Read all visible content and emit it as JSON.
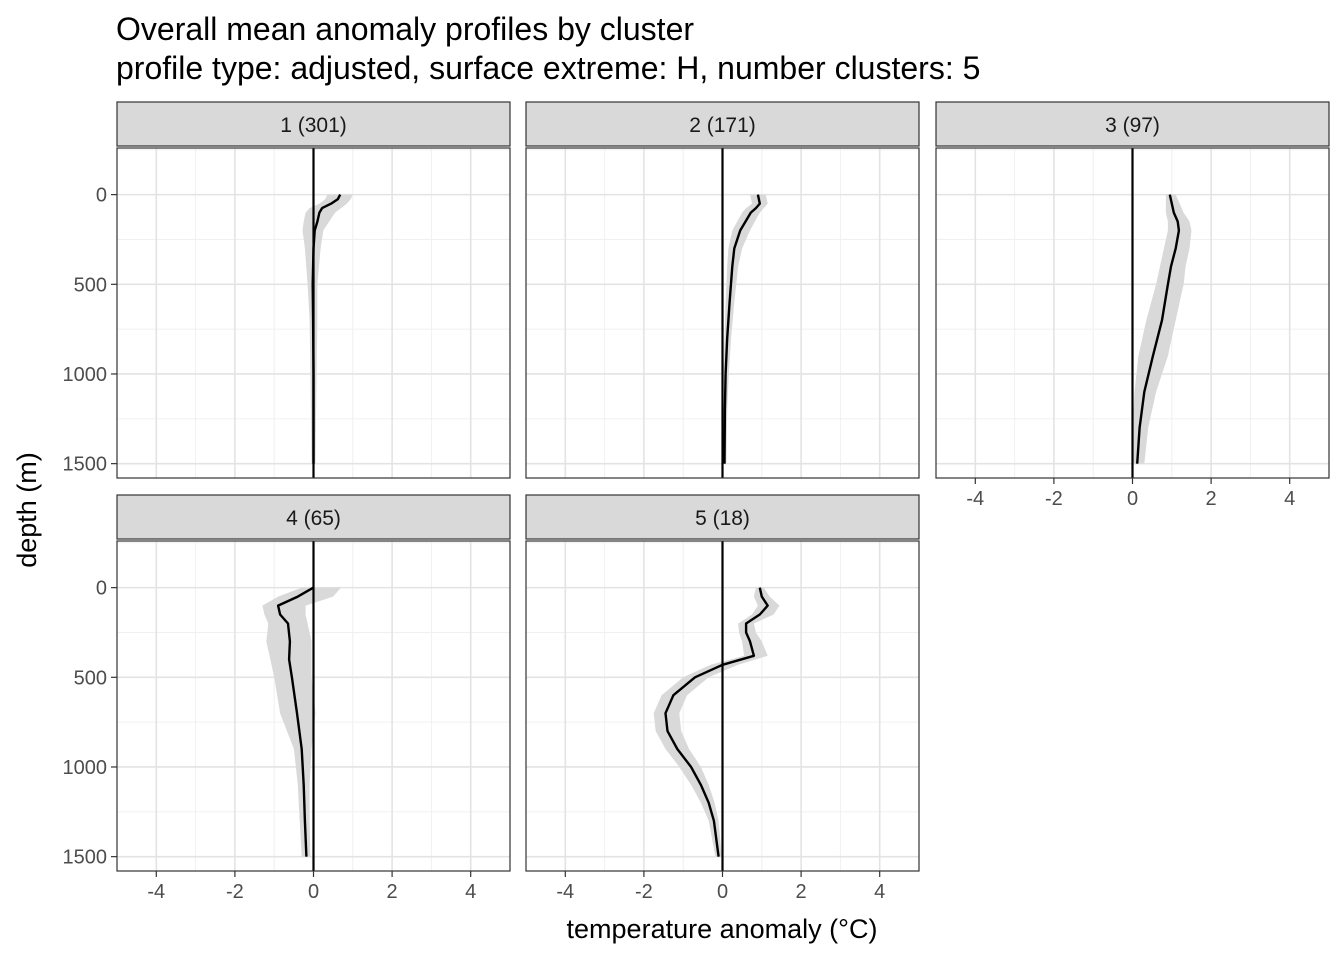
{
  "chart_data": {
    "type": "line",
    "title": "Overall mean anomaly profiles by cluster",
    "subtitle": "profile type: adjusted, surface extreme: H, number clusters: 5",
    "xlabel": "temperature anomaly (°C)",
    "ylabel": "depth (m)",
    "xlim": [
      -5,
      5
    ],
    "ylim": [
      1580,
      -260
    ],
    "y_reversed": true,
    "x_ticks": [
      -4,
      -2,
      0,
      2,
      4
    ],
    "x_tick_labels": [
      "-4",
      "-2",
      "0",
      "2",
      "4"
    ],
    "y_ticks": [
      0,
      500,
      1000,
      1500
    ],
    "y_tick_labels": [
      "0",
      "500",
      "1000",
      "1500"
    ],
    "grid": true,
    "zero_line_x": 0,
    "line_color": "#000000",
    "ribbon_color": "#d9d9d9",
    "strip_color": "#d9d9d9",
    "panels": [
      {
        "label": "1 (301)",
        "profile": [
          {
            "depth": 0,
            "mean": 0.68,
            "lo": 0.35,
            "hi": 1.0
          },
          {
            "depth": 25,
            "mean": 0.62,
            "lo": 0.3,
            "hi": 0.95
          },
          {
            "depth": 50,
            "mean": 0.45,
            "lo": 0.15,
            "hi": 0.85
          },
          {
            "depth": 75,
            "mean": 0.22,
            "lo": -0.1,
            "hi": 0.7
          },
          {
            "depth": 100,
            "mean": 0.15,
            "lo": -0.2,
            "hi": 0.55
          },
          {
            "depth": 150,
            "mean": 0.1,
            "lo": -0.25,
            "hi": 0.4
          },
          {
            "depth": 200,
            "mean": 0.03,
            "lo": -0.28,
            "hi": 0.25
          },
          {
            "depth": 300,
            "mean": 0.0,
            "lo": -0.22,
            "hi": 0.18
          },
          {
            "depth": 500,
            "mean": -0.02,
            "lo": -0.15,
            "hi": 0.1
          },
          {
            "depth": 700,
            "mean": -0.01,
            "lo": -0.1,
            "hi": 0.1
          },
          {
            "depth": 1000,
            "mean": 0.0,
            "lo": -0.08,
            "hi": 0.08
          },
          {
            "depth": 1300,
            "mean": 0.0,
            "lo": -0.06,
            "hi": 0.06
          },
          {
            "depth": 1500,
            "mean": 0.0,
            "lo": -0.05,
            "hi": 0.05
          }
        ]
      },
      {
        "label": "2 (171)",
        "profile": [
          {
            "depth": 0,
            "mean": 0.9,
            "lo": 0.7,
            "hi": 1.1
          },
          {
            "depth": 50,
            "mean": 0.95,
            "lo": 0.75,
            "hi": 1.15
          },
          {
            "depth": 75,
            "mean": 0.85,
            "lo": 0.6,
            "hi": 1.05
          },
          {
            "depth": 100,
            "mean": 0.72,
            "lo": 0.5,
            "hi": 0.95
          },
          {
            "depth": 200,
            "mean": 0.45,
            "lo": 0.25,
            "hi": 0.7
          },
          {
            "depth": 300,
            "mean": 0.3,
            "lo": 0.15,
            "hi": 0.5
          },
          {
            "depth": 400,
            "mean": 0.25,
            "lo": 0.12,
            "hi": 0.4
          },
          {
            "depth": 600,
            "mean": 0.18,
            "lo": 0.08,
            "hi": 0.3
          },
          {
            "depth": 800,
            "mean": 0.12,
            "lo": 0.05,
            "hi": 0.22
          },
          {
            "depth": 1000,
            "mean": 0.08,
            "lo": 0.02,
            "hi": 0.16
          },
          {
            "depth": 1200,
            "mean": 0.06,
            "lo": 0.0,
            "hi": 0.12
          },
          {
            "depth": 1500,
            "mean": 0.05,
            "lo": 0.0,
            "hi": 0.1
          }
        ]
      },
      {
        "label": "3 (97)",
        "profile": [
          {
            "depth": 0,
            "mean": 0.95,
            "lo": 0.85,
            "hi": 1.1
          },
          {
            "depth": 100,
            "mean": 1.05,
            "lo": 0.85,
            "hi": 1.3
          },
          {
            "depth": 150,
            "mean": 1.15,
            "lo": 0.9,
            "hi": 1.45
          },
          {
            "depth": 200,
            "mean": 1.18,
            "lo": 0.9,
            "hi": 1.5
          },
          {
            "depth": 300,
            "mean": 1.1,
            "lo": 0.8,
            "hi": 1.45
          },
          {
            "depth": 400,
            "mean": 0.98,
            "lo": 0.7,
            "hi": 1.35
          },
          {
            "depth": 500,
            "mean": 0.9,
            "lo": 0.6,
            "hi": 1.3
          },
          {
            "depth": 700,
            "mean": 0.75,
            "lo": 0.35,
            "hi": 1.1
          },
          {
            "depth": 900,
            "mean": 0.52,
            "lo": 0.15,
            "hi": 0.9
          },
          {
            "depth": 1100,
            "mean": 0.3,
            "lo": 0.05,
            "hi": 0.6
          },
          {
            "depth": 1300,
            "mean": 0.18,
            "lo": 0.0,
            "hi": 0.4
          },
          {
            "depth": 1500,
            "mean": 0.12,
            "lo": 0.0,
            "hi": 0.3
          }
        ]
      },
      {
        "label": "4 (65)",
        "profile": [
          {
            "depth": 0,
            "mean": 0.0,
            "lo": -0.3,
            "hi": 0.7
          },
          {
            "depth": 50,
            "mean": -0.4,
            "lo": -0.9,
            "hi": 0.5
          },
          {
            "depth": 100,
            "mean": -0.9,
            "lo": -1.3,
            "hi": -0.2
          },
          {
            "depth": 150,
            "mean": -0.85,
            "lo": -1.25,
            "hi": -0.2
          },
          {
            "depth": 200,
            "mean": -0.65,
            "lo": -1.15,
            "hi": -0.15
          },
          {
            "depth": 300,
            "mean": -0.6,
            "lo": -1.2,
            "hi": -0.05
          },
          {
            "depth": 400,
            "mean": -0.62,
            "lo": -1.1,
            "hi": -0.05
          },
          {
            "depth": 500,
            "mean": -0.55,
            "lo": -1.0,
            "hi": -0.05
          },
          {
            "depth": 700,
            "mean": -0.42,
            "lo": -0.85,
            "hi": 0.05
          },
          {
            "depth": 900,
            "mean": -0.3,
            "lo": -0.5,
            "hi": -0.05
          },
          {
            "depth": 1100,
            "mean": -0.25,
            "lo": -0.4,
            "hi": -0.1
          },
          {
            "depth": 1300,
            "mean": -0.22,
            "lo": -0.35,
            "hi": -0.1
          },
          {
            "depth": 1500,
            "mean": -0.18,
            "lo": -0.3,
            "hi": -0.08
          }
        ]
      },
      {
        "label": "5 (18)",
        "profile": [
          {
            "depth": 0,
            "mean": 0.95,
            "lo": 0.85,
            "hi": 1.05
          },
          {
            "depth": 50,
            "mean": 1.0,
            "lo": 0.8,
            "hi": 1.2
          },
          {
            "depth": 100,
            "mean": 1.15,
            "lo": 0.9,
            "hi": 1.45
          },
          {
            "depth": 150,
            "mean": 0.95,
            "lo": 0.75,
            "hi": 1.3
          },
          {
            "depth": 200,
            "mean": 0.6,
            "lo": 0.4,
            "hi": 0.8
          },
          {
            "depth": 250,
            "mean": 0.6,
            "lo": 0.42,
            "hi": 0.85
          },
          {
            "depth": 300,
            "mean": 0.7,
            "lo": 0.5,
            "hi": 1.0
          },
          {
            "depth": 380,
            "mean": 0.8,
            "lo": 0.55,
            "hi": 1.15
          },
          {
            "depth": 430,
            "mean": 0.0,
            "lo": -0.3,
            "hi": 0.4
          },
          {
            "depth": 500,
            "mean": -0.7,
            "lo": -1.0,
            "hi": -0.35
          },
          {
            "depth": 600,
            "mean": -1.25,
            "lo": -1.55,
            "hi": -0.9
          },
          {
            "depth": 700,
            "mean": -1.45,
            "lo": -1.75,
            "hi": -1.1
          },
          {
            "depth": 800,
            "mean": -1.4,
            "lo": -1.7,
            "hi": -1.05
          },
          {
            "depth": 900,
            "mean": -1.15,
            "lo": -1.45,
            "hi": -0.85
          },
          {
            "depth": 1000,
            "mean": -0.8,
            "lo": -1.1,
            "hi": -0.55
          },
          {
            "depth": 1100,
            "mean": -0.55,
            "lo": -0.8,
            "hi": -0.35
          },
          {
            "depth": 1200,
            "mean": -0.35,
            "lo": -0.55,
            "hi": -0.2
          },
          {
            "depth": 1300,
            "mean": -0.22,
            "lo": -0.35,
            "hi": -0.1
          },
          {
            "depth": 1500,
            "mean": -0.1,
            "lo": -0.18,
            "hi": -0.02
          }
        ]
      }
    ]
  }
}
